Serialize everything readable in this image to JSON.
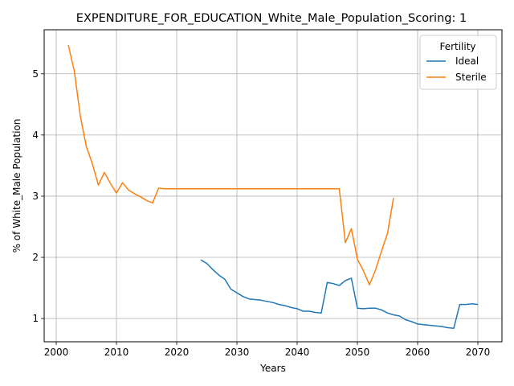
{
  "chart_data": {
    "type": "line",
    "title": "EXPENDITURE_FOR_EDUCATION_White_Male_Population_Scoring: 1",
    "xlabel": "Years",
    "ylabel": "% of White_Male Population",
    "xlim": [
      1998,
      2074
    ],
    "ylim": [
      0.62,
      5.72
    ],
    "xticks": [
      2000,
      2010,
      2020,
      2030,
      2040,
      2050,
      2060,
      2070
    ],
    "yticks": [
      1,
      2,
      3,
      4,
      5
    ],
    "grid": true,
    "legend": {
      "title": "Fertility",
      "placement": "top-right"
    },
    "series": [
      {
        "name": "Ideal",
        "color": "#1f77b4",
        "x": [
          2024,
          2025,
          2026,
          2027,
          2028,
          2029,
          2030,
          2031,
          2032,
          2033,
          2034,
          2035,
          2036,
          2037,
          2038,
          2039,
          2040,
          2041,
          2042,
          2043,
          2044,
          2045,
          2046,
          2047,
          2048,
          2049,
          2050,
          2051,
          2052,
          2053,
          2054,
          2055,
          2056,
          2057,
          2058,
          2059,
          2060,
          2061,
          2062,
          2063,
          2064,
          2065,
          2066,
          2067,
          2068,
          2069,
          2070
        ],
        "y": [
          1.96,
          1.9,
          1.8,
          1.71,
          1.64,
          1.48,
          1.42,
          1.36,
          1.32,
          1.31,
          1.3,
          1.28,
          1.26,
          1.23,
          1.21,
          1.18,
          1.16,
          1.12,
          1.12,
          1.1,
          1.09,
          1.59,
          1.57,
          1.54,
          1.62,
          1.66,
          1.17,
          1.16,
          1.17,
          1.17,
          1.14,
          1.09,
          1.06,
          1.04,
          0.98,
          0.95,
          0.91,
          0.9,
          0.89,
          0.88,
          0.87,
          0.85,
          0.84,
          1.23,
          1.23,
          1.24,
          1.23
        ]
      },
      {
        "name": "Sterile",
        "color": "#ff7f0e",
        "x": [
          2002,
          2003,
          2004,
          2005,
          2006,
          2007,
          2008,
          2009,
          2010,
          2011,
          2012,
          2013,
          2014,
          2015,
          2016,
          2017,
          2018,
          2019,
          2020,
          2021,
          2022,
          2023,
          2024,
          2025,
          2026,
          2027,
          2028,
          2029,
          2030,
          2031,
          2032,
          2033,
          2034,
          2035,
          2036,
          2037,
          2038,
          2039,
          2040,
          2041,
          2042,
          2043,
          2044,
          2045,
          2046,
          2047,
          2048,
          2049,
          2050,
          2051,
          2052,
          2053,
          2054,
          2055,
          2056
        ],
        "y": [
          5.47,
          5.05,
          4.31,
          3.81,
          3.53,
          3.18,
          3.39,
          3.21,
          3.05,
          3.22,
          3.1,
          3.04,
          2.99,
          2.93,
          2.89,
          3.13,
          3.12,
          3.12,
          3.12,
          3.12,
          3.12,
          3.12,
          3.12,
          3.12,
          3.12,
          3.12,
          3.12,
          3.12,
          3.12,
          3.12,
          3.12,
          3.12,
          3.12,
          3.12,
          3.12,
          3.12,
          3.12,
          3.12,
          3.12,
          3.12,
          3.12,
          3.12,
          3.12,
          3.12,
          3.12,
          3.12,
          2.24,
          2.47,
          1.97,
          1.78,
          1.55,
          1.79,
          2.1,
          2.39,
          2.97
        ]
      }
    ]
  }
}
